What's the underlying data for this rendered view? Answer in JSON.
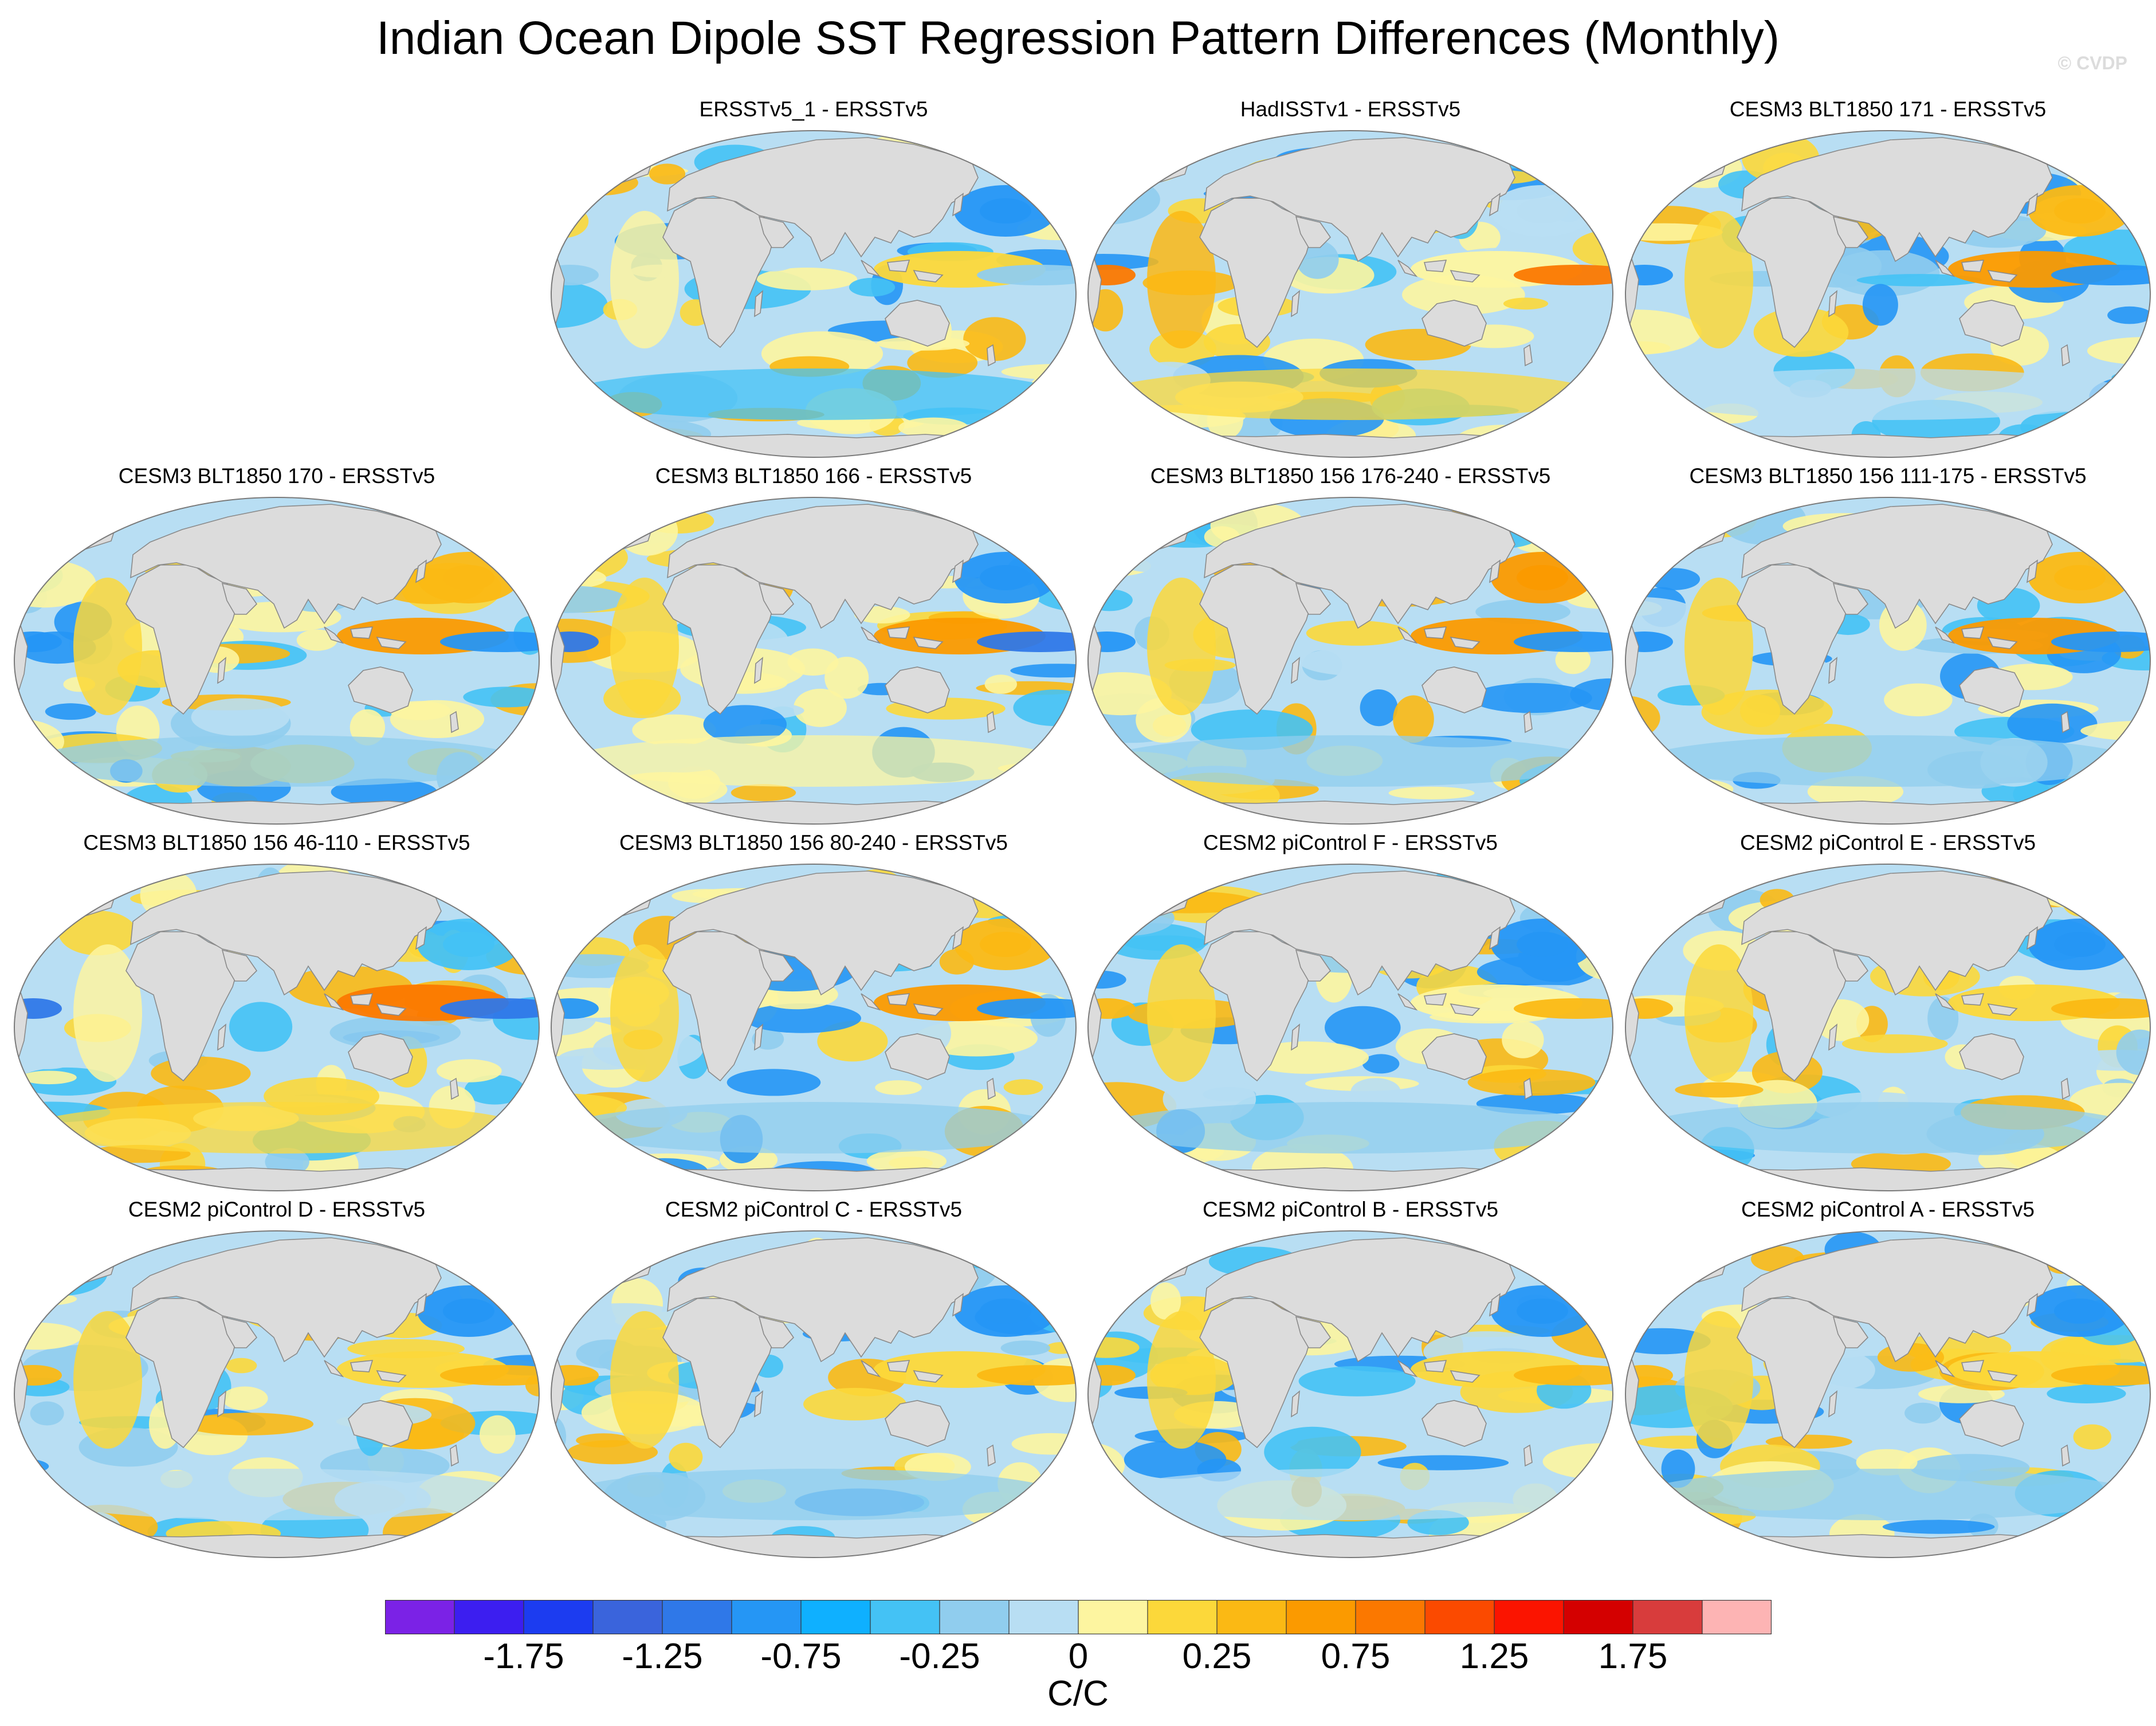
{
  "figure": {
    "title": "Indian Ocean Dipole SST Regression Pattern Differences (Monthly)",
    "watermark": "© CVDP"
  },
  "panels": [
    {
      "title": "ERSSTv5_1 - ERSSTv5",
      "row": 0,
      "col": 1,
      "variant": 0
    },
    {
      "title": "HadISSTv1 - ERSSTv5",
      "row": 0,
      "col": 2,
      "variant": 1
    },
    {
      "title": "CESM3 BLT1850 171 - ERSSTv5",
      "row": 0,
      "col": 3,
      "variant": 2
    },
    {
      "title": "CESM3 BLT1850 170 - ERSSTv5",
      "row": 1,
      "col": 0,
      "variant": 3
    },
    {
      "title": "CESM3 BLT1850 166 - ERSSTv5",
      "row": 1,
      "col": 1,
      "variant": 4
    },
    {
      "title": "CESM3 BLT1850 156 176-240 - ERSSTv5",
      "row": 1,
      "col": 2,
      "variant": 5
    },
    {
      "title": "CESM3 BLT1850 156 111-175 - ERSSTv5",
      "row": 1,
      "col": 3,
      "variant": 6
    },
    {
      "title": "CESM3 BLT1850 156 46-110 - ERSSTv5",
      "row": 2,
      "col": 0,
      "variant": 7
    },
    {
      "title": "CESM3 BLT1850 156 80-240 - ERSSTv5",
      "row": 2,
      "col": 1,
      "variant": 8
    },
    {
      "title": "CESM2 piControl F - ERSSTv5",
      "row": 2,
      "col": 2,
      "variant": 9
    },
    {
      "title": "CESM2 piControl E - ERSSTv5",
      "row": 2,
      "col": 3,
      "variant": 10
    },
    {
      "title": "CESM2 piControl D - ERSSTv5",
      "row": 3,
      "col": 0,
      "variant": 11
    },
    {
      "title": "CESM2 piControl C - ERSSTv5",
      "row": 3,
      "col": 1,
      "variant": 12
    },
    {
      "title": "CESM2 piControl B - ERSSTv5",
      "row": 3,
      "col": 2,
      "variant": 13
    },
    {
      "title": "CESM2 piControl A - ERSSTv5",
      "row": 3,
      "col": 3,
      "variant": 14
    }
  ],
  "colorbar": {
    "units": "C/C",
    "colors": [
      "#7b22e6",
      "#3c1ef0",
      "#1c3cf0",
      "#3a64dc",
      "#2f78e8",
      "#2596f5",
      "#0fb0ff",
      "#44c2f5",
      "#90cdee",
      "#b8def3",
      "#fdf5a0",
      "#fcd83a",
      "#fbb914",
      "#fb9a00",
      "#fb7800",
      "#fb4a00",
      "#fb1400",
      "#d40000",
      "#d83c3c",
      "#fdb4b4"
    ],
    "labels": [
      "-1.75",
      "-1.25",
      "-0.75",
      "-0.25",
      "0",
      "0.25",
      "0.75",
      "1.25",
      "1.75"
    ]
  }
}
